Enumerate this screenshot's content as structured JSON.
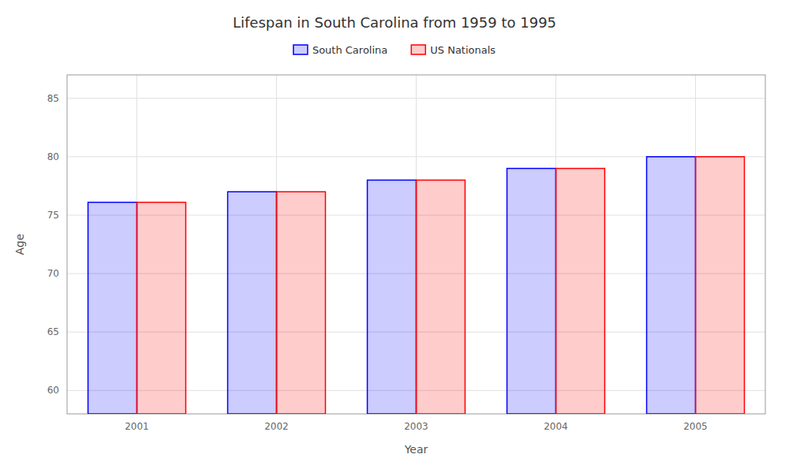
{
  "chart_data": {
    "type": "bar",
    "title": "Lifespan in South Carolina from 1959 to 1995",
    "x_label": "Year",
    "y_label": "Age",
    "categories": [
      "2001",
      "2002",
      "2003",
      "2004",
      "2005"
    ],
    "series": [
      {
        "name": "South Carolina",
        "color": "#0000ff",
        "values": [
          76.1,
          77.0,
          78.0,
          79.0,
          80.0
        ]
      },
      {
        "name": "US Nationals",
        "color": "#ff0000",
        "values": [
          76.1,
          77.0,
          78.0,
          79.0,
          80.0
        ]
      }
    ],
    "ylim": [
      58,
      87
    ],
    "yticks": [
      60,
      65,
      70,
      75,
      80,
      85
    ],
    "grid": true,
    "legend": "top"
  }
}
